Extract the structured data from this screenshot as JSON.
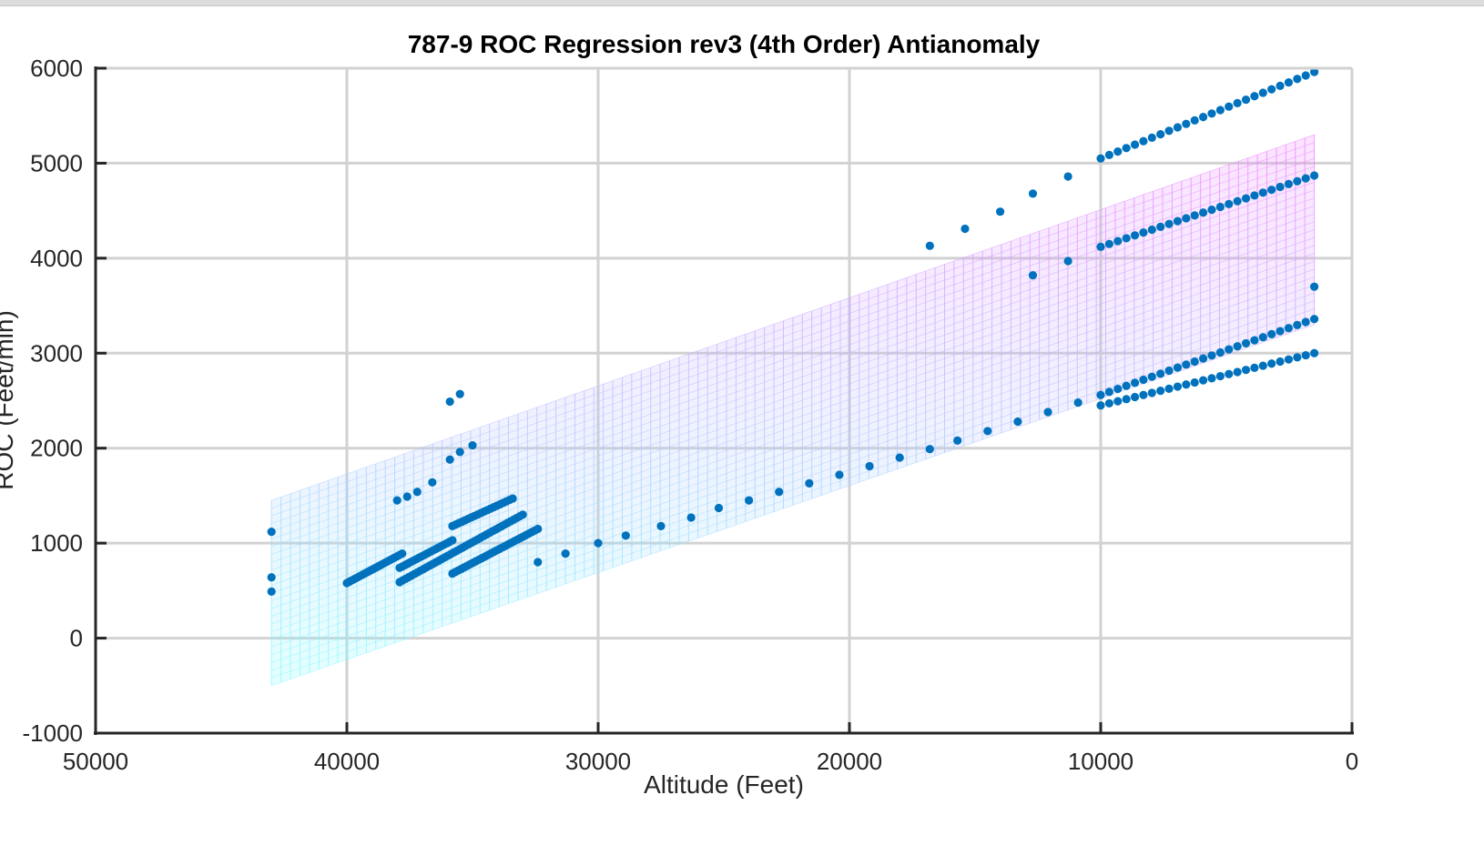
{
  "chart_data": {
    "type": "scatter",
    "title": "787-9 ROC Regression rev3 (4th Order) Antianomaly",
    "xlabel": "Altitude (Feet)",
    "ylabel": "ROC (Feet/min)",
    "xlim": [
      0,
      50000
    ],
    "x_reversed": true,
    "ylim": [
      -1000,
      6000
    ],
    "x_ticks": [
      "50000",
      "40000",
      "30000",
      "20000",
      "10000",
      "0"
    ],
    "y_ticks": [
      "6000",
      "5000",
      "4000",
      "3000",
      "2000",
      "1000",
      "0",
      "-1000"
    ],
    "grid": true,
    "colors": {
      "points": "#0072bd",
      "surface_low": "#7fffff",
      "surface_high": "#f080ff"
    },
    "regression_surface": {
      "x_start": 43000,
      "x_end": 1500,
      "lower_start": -500,
      "lower_end": 3300,
      "upper_start": 1450,
      "upper_end": 5300
    },
    "series": [
      {
        "segments": [
          {
            "x_start": 10000,
            "x_end": 1500,
            "y_start": 5050,
            "y_end": 5960,
            "n": 26
          },
          {
            "x_start": 10000,
            "x_end": 1500,
            "y_start": 4120,
            "y_end": 4870,
            "n": 26
          },
          {
            "x_start": 10000,
            "x_end": 1500,
            "y_start": 2450,
            "y_end": 3000,
            "n": 26
          },
          {
            "x_start": 10000,
            "x_end": 1500,
            "y_start": 2560,
            "y_end": 3360,
            "n": 26
          },
          {
            "x_start": 40000,
            "x_end": 37800,
            "y_start": 580,
            "y_end": 890,
            "n": 22
          },
          {
            "x_start": 37900,
            "x_end": 35800,
            "y_start": 740,
            "y_end": 1030,
            "n": 20
          },
          {
            "x_start": 37900,
            "x_end": 33000,
            "y_start": 590,
            "y_end": 1300,
            "n": 42
          },
          {
            "x_start": 35800,
            "x_end": 32400,
            "y_start": 680,
            "y_end": 1150,
            "n": 30
          },
          {
            "x_start": 35800,
            "x_end": 33400,
            "y_start": 1180,
            "y_end": 1470,
            "n": 20
          }
        ],
        "points": [
          [
            43000,
            1120
          ],
          [
            43000,
            640
          ],
          [
            43000,
            490
          ],
          [
            35900,
            2490
          ],
          [
            35500,
            2570
          ],
          [
            35000,
            2030
          ],
          [
            35500,
            1960
          ],
          [
            35900,
            1880
          ],
          [
            36600,
            1640
          ],
          [
            37200,
            1540
          ],
          [
            37600,
            1490
          ],
          [
            38000,
            1450
          ],
          [
            32400,
            800
          ],
          [
            31300,
            890
          ],
          [
            30000,
            1000
          ],
          [
            28900,
            1080
          ],
          [
            27500,
            1180
          ],
          [
            26300,
            1270
          ],
          [
            25200,
            1370
          ],
          [
            24000,
            1450
          ],
          [
            22800,
            1540
          ],
          [
            21600,
            1630
          ],
          [
            20400,
            1720
          ],
          [
            19200,
            1810
          ],
          [
            18000,
            1900
          ],
          [
            16800,
            1990
          ],
          [
            15700,
            2080
          ],
          [
            14500,
            2180
          ],
          [
            13300,
            2280
          ],
          [
            12100,
            2380
          ],
          [
            10900,
            2480
          ],
          [
            16800,
            4130
          ],
          [
            15400,
            4310
          ],
          [
            14000,
            4490
          ],
          [
            12700,
            4680
          ],
          [
            11300,
            4860
          ],
          [
            12700,
            3820
          ],
          [
            11300,
            3970
          ],
          [
            1500,
            3700
          ]
        ]
      }
    ]
  }
}
